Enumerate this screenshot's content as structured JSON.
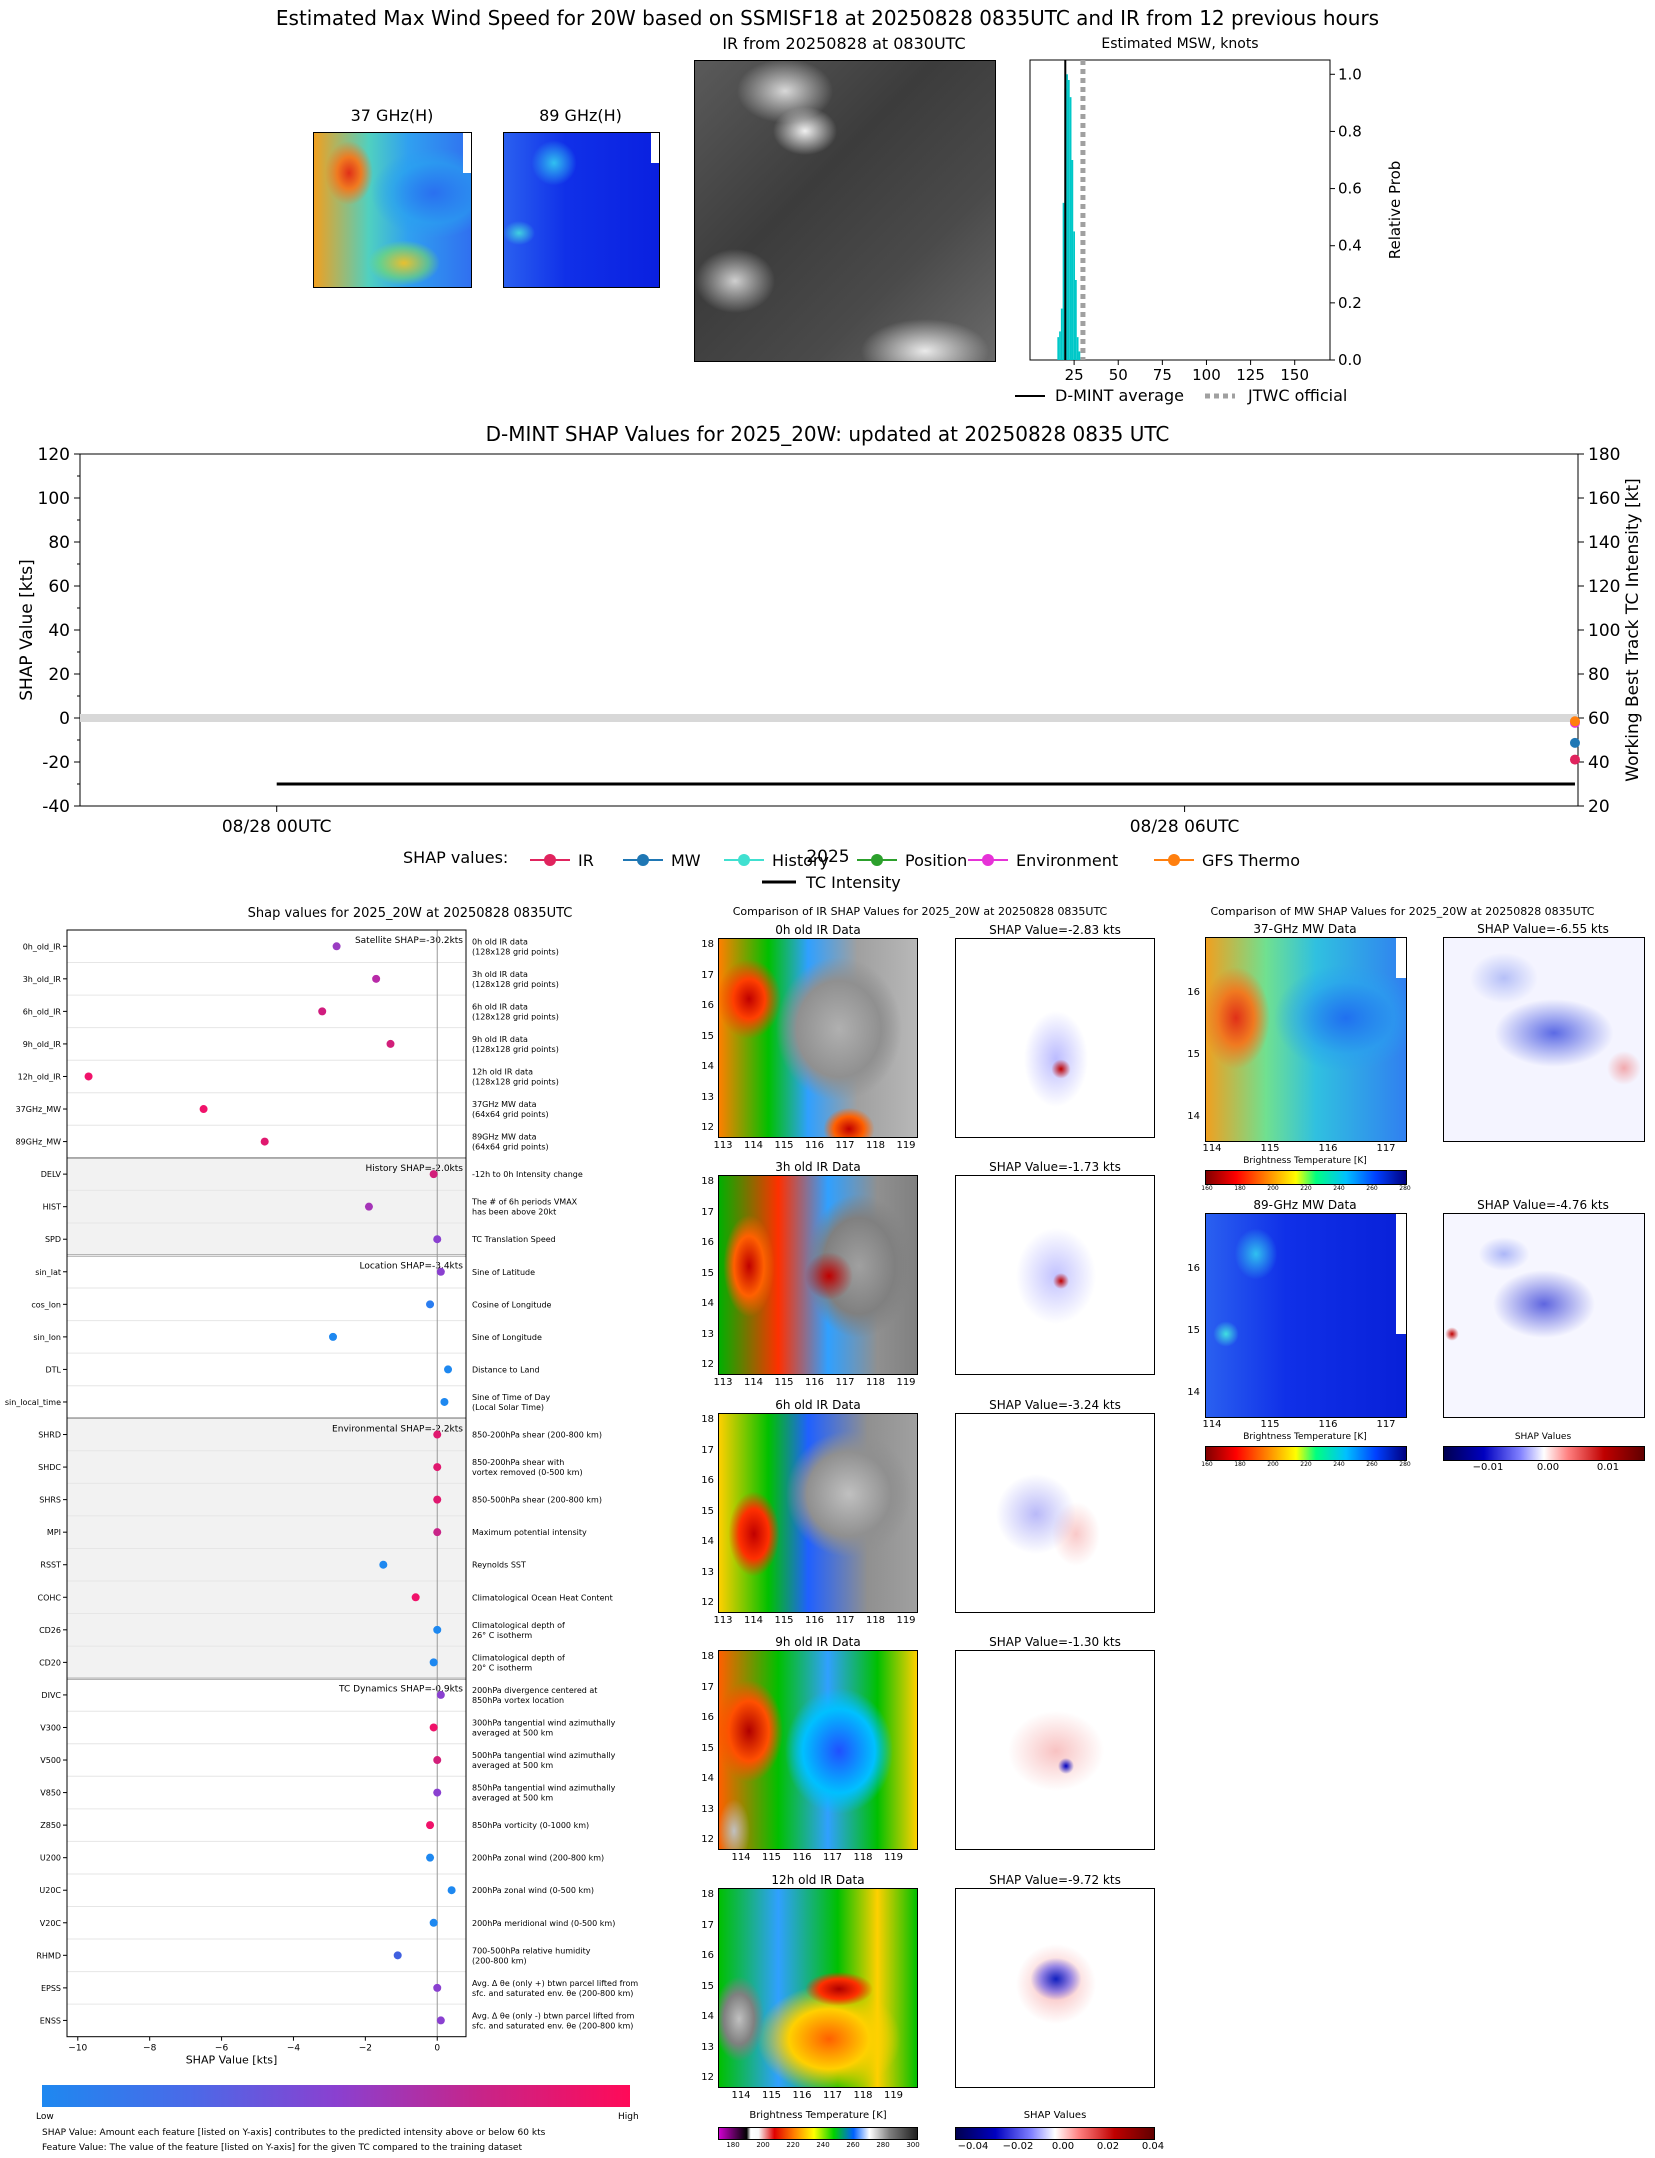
{
  "header": {
    "title": "Estimated Max Wind Speed for 20W based on SSMISF18 at 20250828 0835UTC and IR from 12 previous hours",
    "mw37_title": "37 GHz(H)",
    "mw89_title": "89 GHz(H)",
    "ir_title": "IR from 20250828 at 0830UTC",
    "msw_title": "Estimated MSW, knots",
    "msw_ylabel": "Relative Prob",
    "legend_dmint": "D-MINT average",
    "legend_jtwc": "JTWC official"
  },
  "timeline": {
    "title": "D-MINT SHAP Values for 2025_20W: updated at 20250828 0835 UTC",
    "ylabel_left": "SHAP Value [kts]",
    "ylabel_right": "Working Best Track TC Intensity [kt]",
    "xlabel": "2025",
    "legend_label": "SHAP values:",
    "legend_items": [
      "IR",
      "MW",
      "History",
      "Position",
      "Environment",
      "GFS Thermo"
    ],
    "legend_tc": "TC Intensity"
  },
  "shap_panel": {
    "title": "Shap values for 2025_20W at 20250828 0835UTC",
    "xlabel": "SHAP Value [kts]",
    "group_satellite": "Satellite SHAP=-30.2kts",
    "group_history": "History SHAP=-2.0kts",
    "group_location": "Location SHAP=-3.4kts",
    "group_env": "Environmental SHAP=-2.2kts",
    "group_dyn": "TC Dynamics SHAP=-0.9kts",
    "cbar_low": "Low",
    "cbar_high": "High",
    "note1": "SHAP Value: Amount each feature [listed on Y-axis] contributes to the predicted intensity above or below 60 kts",
    "note2": "Feature Value: The value of the feature [listed on Y-axis] for the given TC compared to the training dataset"
  },
  "ir_compare": {
    "title": "Comparison of IR SHAP Values for 2025_20W at 20250828 0835UTC",
    "rows": [
      {
        "label": "0h old IR Data",
        "shap": "SHAP Value=-2.83 kts"
      },
      {
        "label": "3h old IR Data",
        "shap": "SHAP Value=-1.73 kts"
      },
      {
        "label": "6h old IR Data",
        "shap": "SHAP Value=-3.24 kts"
      },
      {
        "label": "9h old IR Data",
        "shap": "SHAP Value=-1.30 kts"
      },
      {
        "label": "12h old IR Data",
        "shap": "SHAP Value=-9.72 kts"
      }
    ],
    "cbar_bt_label": "Brightness Temperature [K]",
    "cbar_shap_label": "SHAP Values"
  },
  "mw_compare": {
    "title": "Comparison of MW SHAP Values for 2025_20W at 20250828 0835UTC",
    "rows": [
      {
        "label": "37-GHz MW Data",
        "shap": "SHAP Value=-6.55 kts"
      },
      {
        "label": "89-GHz MW Data",
        "shap": "SHAP Value=-4.76 kts"
      }
    ],
    "cbar_bt_label": "Brightness Temperature [K]",
    "cbar_shap_label": "SHAP Values"
  },
  "chart_data": [
    {
      "type": "bar",
      "title": "Estimated MSW, knots",
      "ylabel": "Relative Prob",
      "xlim": [
        0,
        170
      ],
      "ylim": [
        0,
        1.05
      ],
      "xticks": [
        25,
        50,
        75,
        100,
        125,
        150
      ],
      "yticks": [
        0.0,
        0.2,
        0.4,
        0.6,
        0.8,
        1.0
      ],
      "bins": [
        16,
        17,
        18,
        19,
        20,
        21,
        22,
        23,
        24,
        25,
        26,
        27,
        28
      ],
      "values": [
        0.08,
        0.1,
        0.18,
        0.55,
        0.95,
        1.0,
        0.98,
        0.92,
        0.7,
        0.45,
        0.28,
        0.08,
        0.03
      ],
      "dmint_average": 20,
      "jtwc_official": 30,
      "colors": {
        "bars": "#00c8c8",
        "dmint": "#000000",
        "jtwc": "#a0a0a0"
      }
    },
    {
      "type": "line",
      "title": "D-MINT SHAP Values for 2025_20W: updated at 20250828 0835 UTC",
      "ylabel": "SHAP Value [kts]",
      "y2label": "Working Best Track TC Intensity [kt]",
      "xlabel": "2025",
      "ylim": [
        -40,
        120
      ],
      "y2lim": [
        20,
        180
      ],
      "yticks": [
        -40,
        -20,
        0,
        20,
        40,
        60,
        80,
        100,
        120
      ],
      "y2ticks": [
        20,
        40,
        60,
        80,
        100,
        120,
        140,
        160,
        180
      ],
      "xticks": [
        "08/28 00UTC",
        "08/28 06UTC"
      ],
      "xlim_hours": [
        -1.3,
        8.6
      ],
      "tc_intensity": {
        "x_hours": [
          0,
          8.58
        ],
        "y": [
          30,
          30
        ]
      },
      "points": [
        {
          "series": "Environment",
          "x_hours": 8.58,
          "y": -2.2
        },
        {
          "series": "GFS Thermo",
          "x_hours": 8.58,
          "y": -1.5
        },
        {
          "series": "MW",
          "x_hours": 8.58,
          "y": -11.3
        },
        {
          "series": "IR",
          "x_hours": 8.58,
          "y": -18.9
        }
      ],
      "series_colors": {
        "IR": "#e0245e",
        "MW": "#1f77b4",
        "History": "#40e0d0",
        "Position": "#2ca02c",
        "Environment": "#e632d7",
        "GFS Thermo": "#ff7f0e"
      }
    },
    {
      "type": "scatter",
      "title": "Shap values for 2025_20W at 20250828 0835UTC",
      "xlabel": "SHAP Value [kts]",
      "xlim": [
        -10.3,
        0.8
      ],
      "xticks": [
        -10,
        -8,
        -6,
        -4,
        -2,
        0
      ],
      "features": [
        {
          "name": "0h_old_IR",
          "desc": [
            "0h old IR data",
            "(128x128 grid points)"
          ],
          "shap": -2.8,
          "color": "#9a3cc2"
        },
        {
          "name": "3h_old_IR",
          "desc": [
            "3h old IR data",
            "(128x128 grid points)"
          ],
          "shap": -1.7,
          "color": "#b82aa8"
        },
        {
          "name": "6h_old_IR",
          "desc": [
            "6h old IR data",
            "(128x128 grid points)"
          ],
          "shap": -3.2,
          "color": "#d01c7e"
        },
        {
          "name": "9h_old_IR",
          "desc": [
            "9h old IR data",
            "(128x128 grid points)"
          ],
          "shap": -1.3,
          "color": "#d21f7a"
        },
        {
          "name": "12h_old_IR",
          "desc": [
            "12h old IR data",
            "(128x128 grid points)"
          ],
          "shap": -9.7,
          "color": "#f0126a"
        },
        {
          "name": "37GHz_MW",
          "desc": [
            "37GHz MW data",
            "(64x64 grid points)"
          ],
          "shap": -6.5,
          "color": "#f0126a"
        },
        {
          "name": "89GHz_MW",
          "desc": [
            "89GHz MW data",
            "(64x64 grid points)"
          ],
          "shap": -4.8,
          "color": "#e0186f"
        },
        {
          "name": "DELV",
          "desc": [
            "-12h to 0h Intensity change"
          ],
          "shap": -0.1,
          "color": "#d21f7a"
        },
        {
          "name": "HIST",
          "desc": [
            "The # of 6h periods VMAX",
            "has been above 20kt"
          ],
          "shap": -1.9,
          "color": "#a534b8"
        },
        {
          "name": "SPD",
          "desc": [
            "TC Translation Speed"
          ],
          "shap": 0.0,
          "color": "#8a40d0"
        },
        {
          "name": "sin_lat",
          "desc": [
            "Sine of Latitude"
          ],
          "shap": 0.1,
          "color": "#8a40d0"
        },
        {
          "name": "cos_lon",
          "desc": [
            "Cosine of Longitude"
          ],
          "shap": -0.2,
          "color": "#2a7df0"
        },
        {
          "name": "sin_lon",
          "desc": [
            "Sine of Longitude"
          ],
          "shap": -2.9,
          "color": "#1e88f0"
        },
        {
          "name": "DTL",
          "desc": [
            "Distance to Land"
          ],
          "shap": 0.3,
          "color": "#1e88f0"
        },
        {
          "name": "sin_local_time",
          "desc": [
            "Sine of Time of Day",
            "(Local Solar Time)"
          ],
          "shap": 0.2,
          "color": "#1e88f0"
        },
        {
          "name": "SHRD",
          "desc": [
            "850-200hPa shear (200-800 km)"
          ],
          "shap": 0.0,
          "color": "#e0186f"
        },
        {
          "name": "SHDC",
          "desc": [
            "850-200hPa shear with",
            "vortex removed (0-500 km)"
          ],
          "shap": 0.0,
          "color": "#e0186f"
        },
        {
          "name": "SHRS",
          "desc": [
            "850-500hPa shear (200-800 km)"
          ],
          "shap": 0.0,
          "color": "#e0186f"
        },
        {
          "name": "MPI",
          "desc": [
            "Maximum potential intensity"
          ],
          "shap": 0.0,
          "color": "#c82488"
        },
        {
          "name": "RSST",
          "desc": [
            "Reynolds SST"
          ],
          "shap": -1.5,
          "color": "#1e88f0"
        },
        {
          "name": "COHC",
          "desc": [
            "Climatological Ocean Heat Content"
          ],
          "shap": -0.6,
          "color": "#f0126a"
        },
        {
          "name": "CD26",
          "desc": [
            "Climatological depth of",
            "26° C isotherm"
          ],
          "shap": 0.0,
          "color": "#1e88f0"
        },
        {
          "name": "CD20",
          "desc": [
            "Climatological depth of",
            "20° C isotherm"
          ],
          "shap": -0.1,
          "color": "#1e88f0"
        },
        {
          "name": "DIVC",
          "desc": [
            "200hPa divergence centered at",
            "850hPa vortex location"
          ],
          "shap": 0.1,
          "color": "#8a40d0"
        },
        {
          "name": "V300",
          "desc": [
            "300hPa tangential wind azimuthally",
            "averaged at 500 km"
          ],
          "shap": -0.1,
          "color": "#f0126a"
        },
        {
          "name": "V500",
          "desc": [
            "500hPa tangential wind azimuthally",
            "averaged at 500 km"
          ],
          "shap": 0.0,
          "color": "#d21f7a"
        },
        {
          "name": "V850",
          "desc": [
            "850hPa tangential wind azimuthally",
            "averaged at 500 km"
          ],
          "shap": 0.0,
          "color": "#8a40d0"
        },
        {
          "name": "Z850",
          "desc": [
            "850hPa vorticity (0-1000 km)"
          ],
          "shap": -0.2,
          "color": "#f0126a"
        },
        {
          "name": "U200",
          "desc": [
            "200hPa zonal wind (200-800 km)"
          ],
          "shap": -0.2,
          "color": "#1e88f0"
        },
        {
          "name": "U20C",
          "desc": [
            "200hPa zonal wind (0-500 km)"
          ],
          "shap": 0.4,
          "color": "#1e88f0"
        },
        {
          "name": "V20C",
          "desc": [
            "200hPa meridional wind (0-500 km)"
          ],
          "shap": -0.1,
          "color": "#1e88f0"
        },
        {
          "name": "RHMD",
          "desc": [
            "700-500hPa relative humidity",
            "(200-800 km)"
          ],
          "shap": -1.1,
          "color": "#4060e0"
        },
        {
          "name": "EPSS",
          "desc": [
            "Avg. Δ θe (only +) btwn parcel lifted from",
            "sfc. and saturated env. θe (200-800 km)"
          ],
          "shap": 0.0,
          "color": "#8a40d0"
        },
        {
          "name": "ENSS",
          "desc": [
            "Avg. Δ θe (only -) btwn parcel lifted from",
            "sfc. and saturated env. θe (200-800 km)"
          ],
          "shap": 0.1,
          "color": "#8a40d0"
        }
      ]
    }
  ],
  "ir_axes": {
    "yticks": [
      "12",
      "13",
      "14",
      "15",
      "16",
      "17",
      "18"
    ],
    "xticks_a": [
      "113",
      "114",
      "115",
      "116",
      "117",
      "118",
      "119"
    ],
    "xticks_b": [
      "114",
      "115",
      "116",
      "117",
      "118",
      "119"
    ]
  },
  "mw_axes": {
    "yticks": [
      "14",
      "15",
      "16"
    ],
    "xticks": [
      "114",
      "115",
      "116",
      "117"
    ]
  },
  "bt_cbar_ticks": [
    "180",
    "200",
    "220",
    "240",
    "260",
    "280",
    "300"
  ],
  "mw_bt_cbar_ticks": [
    "160",
    "180",
    "200",
    "220",
    "240",
    "260",
    "280"
  ],
  "shap_cbar_ticks": [
    "−0.04",
    "−0.02",
    "0.00",
    "0.02",
    "0.04"
  ],
  "mw_shap_cbar_ticks": [
    "−0.01",
    "0.00",
    "0.01"
  ]
}
